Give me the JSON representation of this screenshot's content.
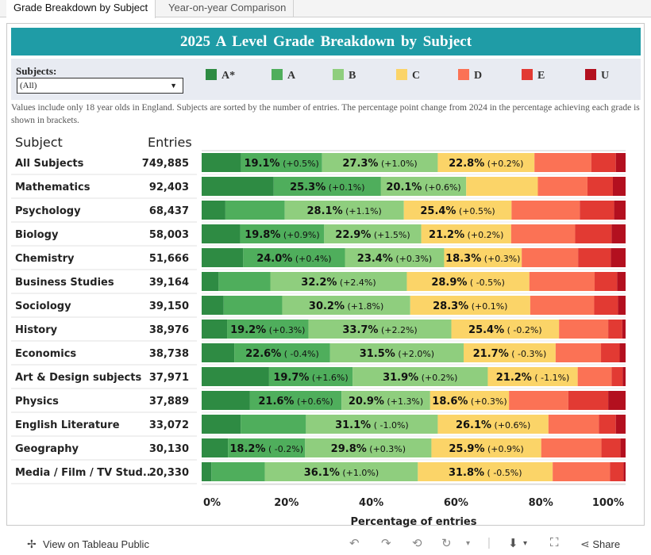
{
  "tabs": [
    {
      "label": "Grade Breakdown by Subject",
      "active": true
    },
    {
      "label": "Year-on-year Comparison",
      "active": false
    }
  ],
  "banner": {
    "title": "2025  A  Level  Grade  Breakdown  by  Subject"
  },
  "filter": {
    "label": "Subjects:",
    "value": "(All)"
  },
  "legend": [
    {
      "grade": "A*",
      "color": "#2e8b43"
    },
    {
      "grade": "A",
      "color": "#4fae5c"
    },
    {
      "grade": "B",
      "color": "#8fce7e"
    },
    {
      "grade": "C",
      "color": "#fbd468"
    },
    {
      "grade": "D",
      "color": "#fb7255"
    },
    {
      "grade": "E",
      "color": "#e23a33"
    },
    {
      "grade": "U",
      "color": "#b3101f"
    }
  ],
  "note": "Values include only 18 year olds in England. Subjects are sorted by the number of entries. The percentage point change from 2024 in the percentage achieving each grade is shown in brackets.",
  "columns": {
    "subject": "Subject",
    "entries": "Entries"
  },
  "footer": {
    "view_label": "View on Tableau Public",
    "share_label": "Share"
  },
  "chart_data": {
    "type": "bar",
    "orientation": "horizontal",
    "stacked": true,
    "xlabel": "Percentage of entries",
    "xticks": [
      "0%",
      "20%",
      "40%",
      "60%",
      "80%",
      "100%"
    ],
    "xlim": [
      0,
      100
    ],
    "grades": [
      "A*",
      "A",
      "B",
      "C",
      "D",
      "E",
      "U"
    ],
    "rows": [
      {
        "subject": "All Subjects",
        "entries": "749,885",
        "values": [
          9.3,
          19.1,
          27.3,
          22.8,
          13.4,
          5.8,
          2.3
        ],
        "labels": [
          null,
          "19.1% (+0.5%)",
          "27.3% (+1.0%)",
          "22.8% (+0.2%)",
          null,
          null,
          null
        ]
      },
      {
        "subject": "Mathematics",
        "entries": "92,403",
        "values": [
          17.0,
          25.3,
          20.1,
          16.9,
          11.7,
          6.0,
          3.0
        ],
        "labels": [
          null,
          "25.3% (+0.1%)",
          "20.1% (+0.6%)",
          null,
          null,
          null,
          null
        ]
      },
      {
        "subject": "Psychology",
        "entries": "68,437",
        "values": [
          5.6,
          14.0,
          28.1,
          25.4,
          16.1,
          8.1,
          2.7
        ],
        "labels": [
          null,
          null,
          "28.1% (+1.1%)",
          "25.4% (+0.5%)",
          null,
          null,
          null
        ]
      },
      {
        "subject": "Biology",
        "entries": "58,003",
        "values": [
          9.1,
          19.8,
          22.9,
          21.2,
          15.1,
          8.6,
          3.3
        ],
        "labels": [
          null,
          "19.8% (+0.9%)",
          "22.9% (+1.5%)",
          "21.2% (+0.2%)",
          null,
          null,
          null
        ]
      },
      {
        "subject": "Chemistry",
        "entries": "51,666",
        "values": [
          9.8,
          24.0,
          23.4,
          18.3,
          13.3,
          7.7,
          3.5
        ],
        "labels": [
          null,
          "24.0% (+0.4%)",
          "23.4% (+0.3%)",
          "18.3% (+0.3%)",
          null,
          null,
          null
        ]
      },
      {
        "subject": "Business Studies",
        "entries": "39,164",
        "values": [
          4.0,
          12.2,
          32.2,
          28.9,
          15.4,
          5.3,
          2.0
        ],
        "labels": [
          null,
          null,
          "32.2% (+2.4%)",
          "28.9% ( -0.5%)",
          null,
          null,
          null
        ]
      },
      {
        "subject": "Sociology",
        "entries": "39,150",
        "values": [
          5.2,
          13.8,
          30.2,
          28.3,
          15.1,
          5.6,
          1.8
        ],
        "labels": [
          null,
          null,
          "30.2% (+1.8%)",
          "28.3% (+0.1%)",
          null,
          null,
          null
        ]
      },
      {
        "subject": "History",
        "entries": "38,976",
        "values": [
          6.0,
          19.2,
          33.7,
          25.4,
          11.6,
          3.3,
          0.8
        ],
        "labels": [
          null,
          "19.2% (+0.3%)",
          "33.7% (+2.2%)",
          "25.4% ( -0.2%)",
          null,
          null,
          null
        ]
      },
      {
        "subject": "Economics",
        "entries": "38,738",
        "values": [
          7.7,
          22.6,
          31.5,
          21.7,
          10.7,
          4.4,
          1.4
        ],
        "labels": [
          null,
          "22.6% ( -0.4%)",
          "31.5% (+2.0%)",
          "21.7% ( -0.3%)",
          null,
          null,
          null
        ]
      },
      {
        "subject": "Art & Design subjects",
        "entries": "37,971",
        "values": [
          15.9,
          19.7,
          31.9,
          21.2,
          8.0,
          2.6,
          0.7
        ],
        "labels": [
          null,
          "19.7% (+1.6%)",
          "31.9% (+0.2%)",
          "21.2% ( -1.1%)",
          null,
          null,
          null
        ]
      },
      {
        "subject": "Physics",
        "entries": "37,889",
        "values": [
          11.4,
          21.6,
          20.9,
          18.6,
          14.0,
          9.4,
          4.1
        ],
        "labels": [
          null,
          "21.6% (+0.6%)",
          "20.9% (+1.3%)",
          "18.6% (+0.3%)",
          null,
          null,
          null
        ]
      },
      {
        "subject": "English Literature",
        "entries": "33,072",
        "values": [
          9.2,
          15.4,
          31.1,
          26.1,
          11.9,
          4.0,
          2.3
        ],
        "labels": [
          null,
          null,
          "31.1% ( -1.0%)",
          "26.1% (+0.6%)",
          null,
          null,
          null
        ]
      },
      {
        "subject": "Geography",
        "entries": "30,130",
        "values": [
          6.2,
          18.2,
          29.8,
          25.9,
          14.2,
          4.5,
          1.2
        ],
        "labels": [
          null,
          "18.2% ( -0.2%)",
          "29.8% (+0.3%)",
          "25.9% (+0.9%)",
          null,
          null,
          null
        ]
      },
      {
        "subject": "Media / Film / TV Stud..",
        "entries": "20,330",
        "values": [
          2.3,
          12.6,
          36.1,
          31.8,
          13.5,
          3.2,
          0.5
        ],
        "labels": [
          null,
          null,
          "36.1% (+1.0%)",
          "31.8% ( -0.5%)",
          null,
          null,
          null
        ]
      }
    ]
  }
}
